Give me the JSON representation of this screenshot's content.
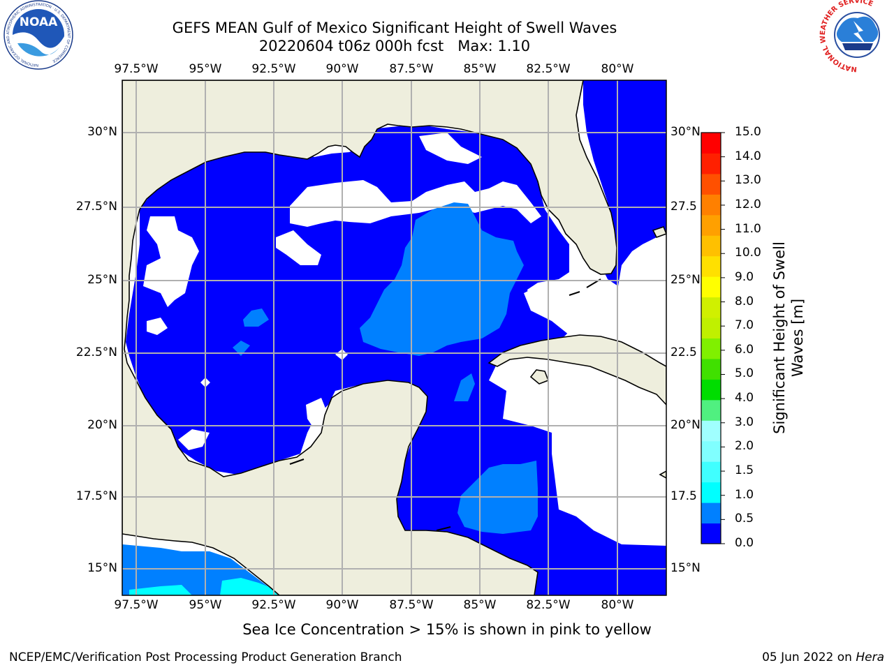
{
  "title": {
    "line1": "GEFS MEAN Gulf of Mexico Significant Height of Swell Waves",
    "line2": "20220604 t06z 000h fcst   Max: 1.10"
  },
  "axes": {
    "lon_ticks": [
      "97.5°W",
      "95°W",
      "92.5°W",
      "90°W",
      "87.5°W",
      "85°W",
      "82.5°W",
      "80°W"
    ],
    "lat_ticks_left": [
      "30°N",
      "27.5°N",
      "25°N",
      "22.5°N",
      "20°N",
      "17.5°N",
      "15°N"
    ],
    "lat_ticks_right": [
      "30°N",
      "27.5",
      "25°N",
      "22.5",
      "20°N",
      "17.5",
      "15°N"
    ],
    "lon_range": [
      -98,
      -78.2
    ],
    "lat_range": [
      14,
      31.8
    ],
    "grid": true
  },
  "colorbar": {
    "label": "Significant Height of Swell Waves [m]",
    "label_line1": "Significant Height of Swell",
    "label_line2": "Waves [m]",
    "ticks": [
      "15.0",
      "14.0",
      "13.0",
      "12.0",
      "11.0",
      "10.0",
      "9.0",
      "8.0",
      "7.0",
      "6.0",
      "5.0",
      "4.0",
      "3.0",
      "2.0",
      "1.5",
      "1.0",
      "0.5",
      "0.0"
    ],
    "colors": [
      "#0000ff",
      "#0080ff",
      "#00ffff",
      "#40ffff",
      "#80ffff",
      "#a0ffff",
      "#50f080",
      "#00dd00",
      "#40e000",
      "#80f000",
      "#c0f000",
      "#d0f000",
      "#ffff00",
      "#ffe000",
      "#ffc000",
      "#ffa000",
      "#ff8000",
      "#ff5000",
      "#ff2000",
      "#ff0000"
    ],
    "land_color": "#eeeedd",
    "missing_color": "#ffffff"
  },
  "note": "Sea Ice Concentration > 15% is shown in pink to yellow",
  "footer": {
    "left": "NCEP/EMC/Verification Post Processing Product Generation Branch",
    "right_prefix": "05 Jun 2022 on ",
    "right_host": "Hera"
  },
  "logos": {
    "noaa": "NOAA",
    "noaa_ring": "NATIONAL OCEANIC AND ATMOSPHERIC ADMINISTRATION · U.S. DEPARTMENT OF COMMERCE",
    "nws_ring": "NATIONAL WEATHER SERVICE"
  }
}
